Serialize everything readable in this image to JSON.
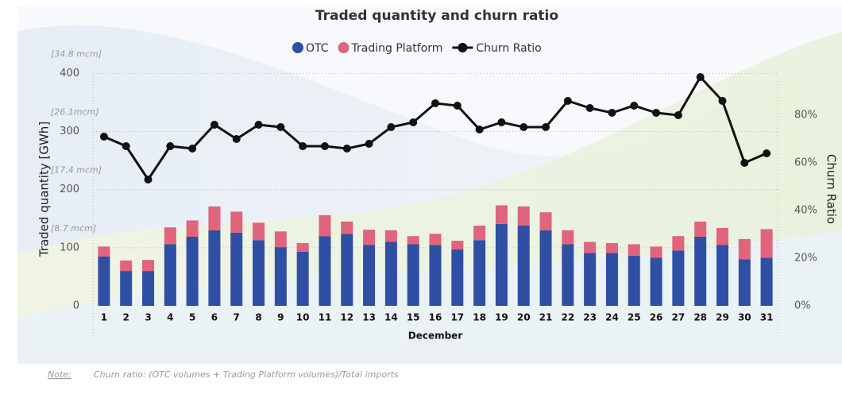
{
  "chart_data": {
    "type": "bar_line",
    "title": "Traded quantity and churn ratio",
    "x_label": "December",
    "y_label": "Traded quantity [GWh]",
    "y2_label": "Churn Ratio",
    "categories": [
      "1",
      "2",
      "3",
      "4",
      "5",
      "6",
      "7",
      "8",
      "9",
      "10",
      "11",
      "12",
      "13",
      "14",
      "15",
      "16",
      "17",
      "18",
      "19",
      "20",
      "21",
      "22",
      "23",
      "24",
      "25",
      "26",
      "27",
      "28",
      "29",
      "30",
      "31"
    ],
    "series": [
      {
        "name": "OTC",
        "color": "#2e4fa3",
        "kind": "bar",
        "values": [
          85,
          60,
          60,
          106,
          119,
          130,
          126,
          113,
          101,
          93,
          120,
          124,
          105,
          110,
          106,
          105,
          97,
          113,
          141,
          138,
          130,
          106,
          91,
          91,
          86,
          83,
          95,
          119,
          105,
          80,
          83
        ]
      },
      {
        "name": "Trading Platform",
        "color": "#e0647c",
        "kind": "bar",
        "values": [
          17,
          18,
          19,
          29,
          28,
          41,
          36,
          30,
          27,
          15,
          36,
          21,
          26,
          20,
          14,
          19,
          15,
          25,
          32,
          33,
          31,
          24,
          19,
          17,
          20,
          19,
          25,
          26,
          29,
          35,
          49
        ]
      },
      {
        "name": "Churn Ratio",
        "color": "#111111",
        "kind": "line",
        "axis": "y2",
        "values": [
          71,
          67,
          53,
          67,
          66,
          76,
          70,
          76,
          75,
          67,
          67,
          66,
          68,
          75,
          77,
          85,
          84,
          74,
          77,
          75,
          75,
          86,
          83,
          81,
          84,
          81,
          80,
          96,
          86,
          60,
          64
        ]
      }
    ],
    "ylim": [
      0,
      410
    ],
    "yticks": [
      0,
      100,
      200,
      300,
      400
    ],
    "ytick_annotations": [
      "[8.7 mcm]",
      "[17.4 mcm]",
      "[26.1mcm]",
      "[34.8 mcm]"
    ],
    "y2lim": [
      0,
      100
    ],
    "y2ticks": [
      {
        "value": 0,
        "label": "0%"
      },
      {
        "value": 20,
        "label": "20%"
      },
      {
        "value": 40,
        "label": "40%"
      },
      {
        "value": 60,
        "label": "60%"
      },
      {
        "value": 80,
        "label": "80%"
      }
    ],
    "grid": true,
    "legend": "top",
    "note_label": "Note:",
    "note": "Churn ratio: (OTC volumes + Trading Platform volumes)/Total imports"
  }
}
